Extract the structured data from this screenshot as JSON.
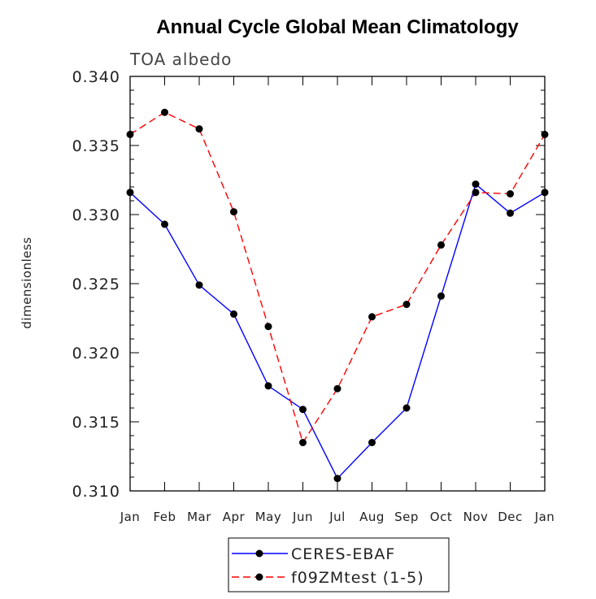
{
  "chart_data": {
    "type": "line",
    "title": "Annual Cycle Global Mean Climatology",
    "subtitle": "TOA albedo",
    "xlabel": "",
    "ylabel": "dimensionless",
    "categories": [
      "Jan",
      "Feb",
      "Mar",
      "Apr",
      "May",
      "Jun",
      "Jul",
      "Aug",
      "Sep",
      "Oct",
      "Nov",
      "Dec",
      "Jan"
    ],
    "ylim": [
      0.31,
      0.34
    ],
    "yticks": [
      "0.310",
      "0.315",
      "0.320",
      "0.325",
      "0.330",
      "0.335",
      "0.340"
    ],
    "grid": false,
    "legend_position": "bottom",
    "series": [
      {
        "name": "CERES-EBAF",
        "color": "#0000ff",
        "line_style": "solid",
        "marker": "filled-circle",
        "values": [
          0.3316,
          0.3293,
          0.3249,
          0.3228,
          0.3176,
          0.3159,
          0.3109,
          0.3135,
          0.316,
          0.3241,
          0.3322,
          0.3301,
          0.3316
        ]
      },
      {
        "name": "f09ZMtest (1-5)",
        "color": "#ff0000",
        "line_style": "dashed",
        "marker": "filled-circle",
        "values": [
          0.3358,
          0.3374,
          0.3362,
          0.3302,
          0.3219,
          0.3135,
          0.3174,
          0.3226,
          0.3235,
          0.3278,
          0.3316,
          0.3315,
          0.3358
        ]
      }
    ]
  }
}
